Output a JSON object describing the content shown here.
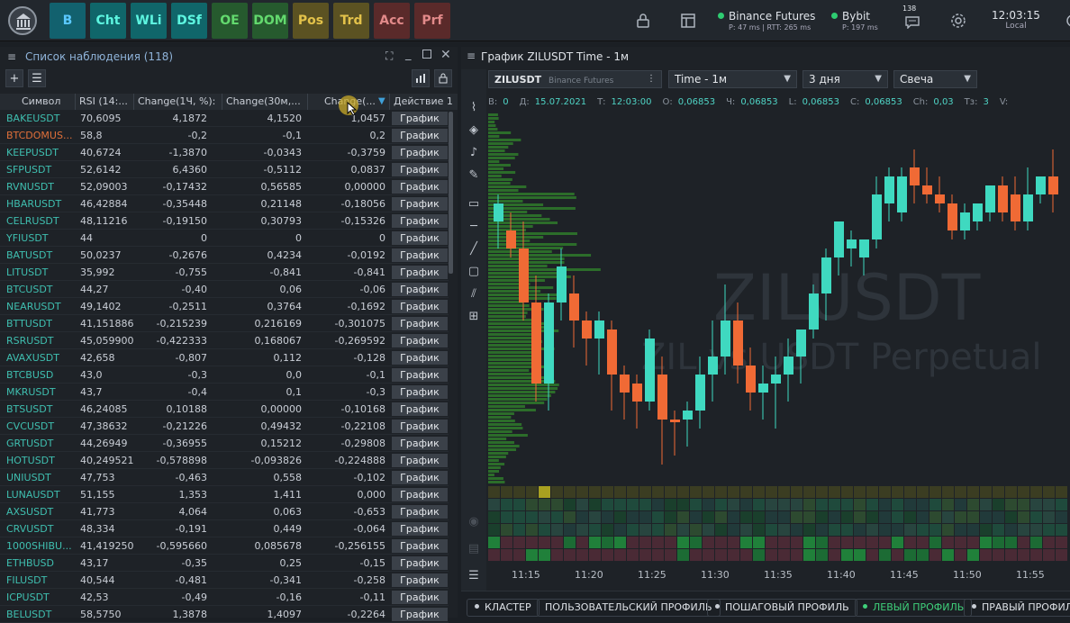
{
  "topbar": {
    "modules": [
      {
        "label": "B",
        "bg": "#12616e",
        "fg": "#5bc8ff"
      },
      {
        "label": "Cht",
        "bg": "#10666a",
        "fg": "#5df5e0"
      },
      {
        "label": "WLi",
        "bg": "#10666a",
        "fg": "#5df5e0"
      },
      {
        "label": "DSf",
        "bg": "#10666a",
        "fg": "#5df5e0"
      },
      {
        "label": "OE",
        "bg": "#265a2e",
        "fg": "#63d96e"
      },
      {
        "label": "DOM",
        "bg": "#265a2e",
        "fg": "#63d96e"
      },
      {
        "label": "Pos",
        "bg": "#5b5222",
        "fg": "#e3c24a"
      },
      {
        "label": "Trd",
        "bg": "#5b5222",
        "fg": "#e3c24a"
      },
      {
        "label": "Acc",
        "bg": "#5a2a2a",
        "fg": "#e28a8a"
      },
      {
        "label": "Prf",
        "bg": "#5a2a2a",
        "fg": "#e28a8a"
      }
    ],
    "connections": [
      {
        "name": "Binance Futures",
        "stats": "P: 47 ms | RTT: 265 ms"
      },
      {
        "name": "Bybit",
        "stats": "P: 197 ms"
      }
    ],
    "notifications_count": "138",
    "clock": {
      "time": "12:03:15",
      "zone": "Local"
    }
  },
  "watchlist": {
    "title": "Список наблюдения (118)",
    "columns": [
      "Символ",
      "RSI (14:...",
      "Change(1Ч, %):",
      "Change(30м,...",
      "Change(...",
      "Действие 1"
    ],
    "action_label": "График",
    "rows": [
      {
        "symbol": "BAKEUSDT",
        "rsi": "70,6095",
        "c1": "4,1872",
        "c2": "4,1520",
        "c3": "1,0457"
      },
      {
        "symbol": "BTCDOMUS...",
        "rsi": "58,8",
        "c1": "-0,2",
        "c2": "-0,1",
        "c3": "0,2",
        "alt": true
      },
      {
        "symbol": "KEEPUSDT",
        "rsi": "40,6724",
        "c1": "-1,3870",
        "c2": "-0,0343",
        "c3": "-0,3759"
      },
      {
        "symbol": "SFPUSDT",
        "rsi": "52,6142",
        "c1": "6,4360",
        "c2": "-0,5112",
        "c3": "0,0837"
      },
      {
        "symbol": "RVNUSDT",
        "rsi": "52,09003",
        "c1": "-0,17432",
        "c2": "0,56585",
        "c3": "0,00000"
      },
      {
        "symbol": "HBARUSDT",
        "rsi": "46,42884",
        "c1": "-0,35448",
        "c2": "0,21148",
        "c3": "-0,18056"
      },
      {
        "symbol": "CELRUSDT",
        "rsi": "48,11216",
        "c1": "-0,19150",
        "c2": "0,30793",
        "c3": "-0,15326"
      },
      {
        "symbol": "YFIUSDT",
        "rsi": "44",
        "c1": "0",
        "c2": "0",
        "c3": "0"
      },
      {
        "symbol": "BATUSDT",
        "rsi": "50,0237",
        "c1": "-0,2676",
        "c2": "0,4234",
        "c3": "-0,0192"
      },
      {
        "symbol": "LITUSDT",
        "rsi": "35,992",
        "c1": "-0,755",
        "c2": "-0,841",
        "c3": "-0,841"
      },
      {
        "symbol": "BTCUSDT",
        "rsi": "44,27",
        "c1": "-0,40",
        "c2": "0,06",
        "c3": "-0,06"
      },
      {
        "symbol": "NEARUSDT",
        "rsi": "49,1402",
        "c1": "-0,2511",
        "c2": "0,3764",
        "c3": "-0,1692"
      },
      {
        "symbol": "BTTUSDT",
        "rsi": "41,151886",
        "c1": "-0,215239",
        "c2": "0,216169",
        "c3": "-0,301075"
      },
      {
        "symbol": "RSRUSDT",
        "rsi": "45,059900",
        "c1": "-0,422333",
        "c2": "0,168067",
        "c3": "-0,269592"
      },
      {
        "symbol": "AVAXUSDT",
        "rsi": "42,658",
        "c1": "-0,807",
        "c2": "0,112",
        "c3": "-0,128"
      },
      {
        "symbol": "BTCBUSD",
        "rsi": "43,0",
        "c1": "-0,3",
        "c2": "0,0",
        "c3": "-0,1"
      },
      {
        "symbol": "MKRUSDT",
        "rsi": "43,7",
        "c1": "-0,4",
        "c2": "0,1",
        "c3": "-0,3"
      },
      {
        "symbol": "BTSUSDT",
        "rsi": "46,24085",
        "c1": "0,10188",
        "c2": "0,00000",
        "c3": "-0,10168"
      },
      {
        "symbol": "CVCUSDT",
        "rsi": "47,38632",
        "c1": "-0,21226",
        "c2": "0,49432",
        "c3": "-0,22108"
      },
      {
        "symbol": "GRTUSDT",
        "rsi": "44,26949",
        "c1": "-0,36955",
        "c2": "0,15212",
        "c3": "-0,29808"
      },
      {
        "symbol": "HOTUSDT",
        "rsi": "40,249521",
        "c1": "-0,578898",
        "c2": "-0,093826",
        "c3": "-0,224888"
      },
      {
        "symbol": "UNIUSDT",
        "rsi": "47,753",
        "c1": "-0,463",
        "c2": "0,558",
        "c3": "-0,102"
      },
      {
        "symbol": "LUNAUSDT",
        "rsi": "51,155",
        "c1": "1,353",
        "c2": "1,411",
        "c3": "0,000"
      },
      {
        "symbol": "AXSUSDT",
        "rsi": "41,773",
        "c1": "4,064",
        "c2": "0,063",
        "c3": "-0,653"
      },
      {
        "symbol": "CRVUSDT",
        "rsi": "48,334",
        "c1": "-0,191",
        "c2": "0,449",
        "c3": "-0,064"
      },
      {
        "symbol": "1000SHIBU...",
        "rsi": "41,419250",
        "c1": "-0,595660",
        "c2": "0,085678",
        "c3": "-0,256155"
      },
      {
        "symbol": "ETHBUSD",
        "rsi": "43,17",
        "c1": "-0,35",
        "c2": "0,25",
        "c3": "-0,15"
      },
      {
        "symbol": "FILUSDT",
        "rsi": "40,544",
        "c1": "-0,481",
        "c2": "-0,341",
        "c3": "-0,258"
      },
      {
        "symbol": "ICPUSDT",
        "rsi": "42,53",
        "c1": "-0,49",
        "c2": "-0,16",
        "c3": "-0,11"
      },
      {
        "symbol": "BELUSDT",
        "rsi": "58,5750",
        "c1": "1,3878",
        "c2": "1,4097",
        "c3": "-0,2264"
      }
    ]
  },
  "chart": {
    "title": "График ZILUSDT Time - 1м",
    "symbol": "ZILUSDT",
    "exchange": "Binance Futures",
    "timeframe": "Time - 1м",
    "range": "3 дня",
    "style": "Свеча",
    "info": [
      {
        "k": "В:",
        "v": "0"
      },
      {
        "k": "Д:",
        "v": "15.07.2021"
      },
      {
        "k": "Т:",
        "v": "12:03:00"
      },
      {
        "k": "О:",
        "v": "0,06853"
      },
      {
        "k": "Ч:",
        "v": "0,06853"
      },
      {
        "k": "L:",
        "v": "0,06853"
      },
      {
        "k": "С:",
        "v": "0,06853"
      },
      {
        "k": "Ch:",
        "v": "0,03"
      },
      {
        "k": "Тз:",
        "v": "3"
      },
      {
        "k": "V:",
        "v": ""
      }
    ],
    "watermark_1": "ZILUSDT",
    "watermark_2": "ZIL vs USDT  Perpetual",
    "times": [
      "11:15",
      "11:20",
      "11:25",
      "11:30",
      "11:35",
      "11:40",
      "11:45",
      "11:50",
      "11:55"
    ],
    "colors": {
      "up": "#3fd9c0",
      "down": "#f06a35"
    },
    "bottom_tabs": [
      {
        "label": "КЛАСТЕР",
        "on": false
      },
      {
        "label": "ПОЛЬЗОВАТЕЛЬСКИЙ ПРОФИЛЬ",
        "on": false,
        "nodot": true
      },
      {
        "label": "ПОШАГОВЫЙ ПРОФИЛЬ",
        "on": false
      },
      {
        "label": "ЛЕВЫЙ ПРОФИЛЬ",
        "on": true
      },
      {
        "label": "ПРАВЫЙ ПРОФИЛЬ",
        "on": false
      }
    ]
  }
}
